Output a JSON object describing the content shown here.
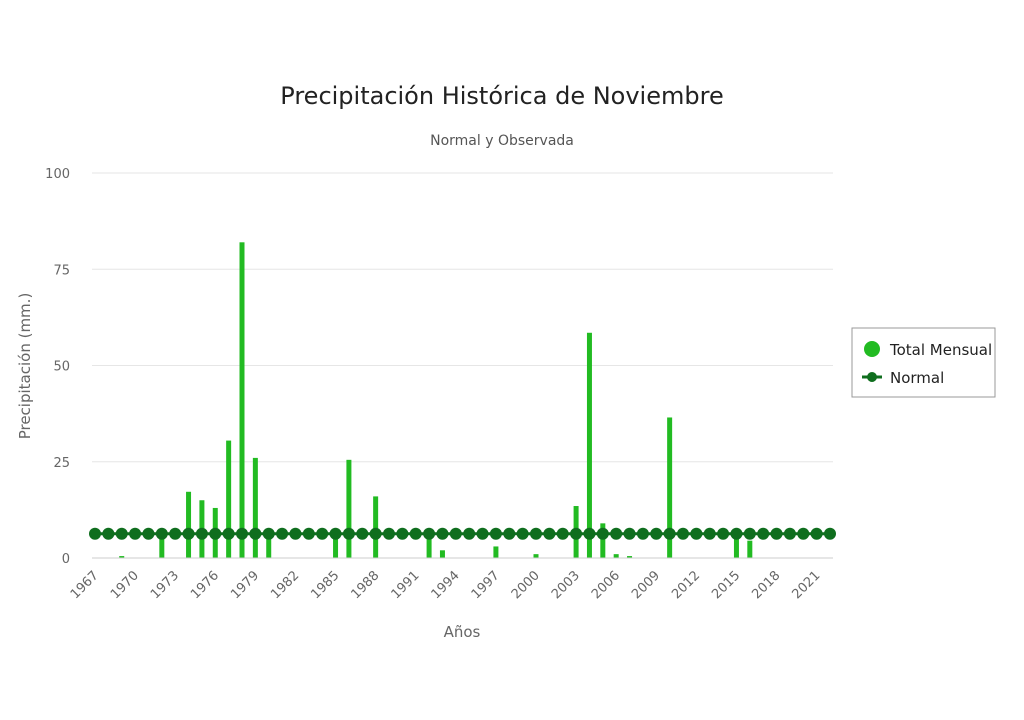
{
  "chart_data": {
    "type": "bar",
    "title": "Precipitación Histórica de Noviembre",
    "subtitle": "Normal y Observada",
    "xlabel": "Años",
    "ylabel": "Precipitación (mm.)",
    "ylim": [
      0,
      100
    ],
    "y_ticks": [
      0,
      25,
      50,
      75,
      100
    ],
    "x_tick_labels": [
      "1967",
      "1970",
      "1973",
      "1976",
      "1979",
      "1982",
      "1985",
      "1988",
      "1991",
      "1994",
      "1997",
      "2000",
      "2003",
      "2006",
      "2009",
      "2012",
      "2015",
      "2018",
      "2021"
    ],
    "categories": [
      1967,
      1968,
      1969,
      1970,
      1971,
      1972,
      1973,
      1974,
      1975,
      1976,
      1977,
      1978,
      1979,
      1980,
      1981,
      1982,
      1983,
      1984,
      1985,
      1986,
      1987,
      1988,
      1989,
      1990,
      1991,
      1992,
      1993,
      1994,
      1995,
      1996,
      1997,
      1998,
      1999,
      2000,
      2001,
      2002,
      2003,
      2004,
      2005,
      2006,
      2007,
      2008,
      2009,
      2010,
      2011,
      2012,
      2013,
      2014,
      2015,
      2016,
      2017,
      2018,
      2019,
      2020,
      2021,
      2022
    ],
    "grid": true,
    "legend_position": "right",
    "series": [
      {
        "name": "Total Mensual",
        "type": "bar",
        "color": "#22bb22",
        "values": [
          0,
          0,
          0.5,
          0,
          0,
          6.5,
          0,
          17.2,
          15,
          13,
          30.5,
          82,
          26,
          6,
          0,
          0,
          0,
          0,
          6,
          25.5,
          0,
          16,
          0,
          0,
          0,
          6.5,
          2,
          0,
          0,
          0,
          3,
          0,
          0,
          1,
          0,
          0,
          13.5,
          58.5,
          9,
          1,
          0.5,
          0,
          0,
          36.5,
          0,
          0,
          0,
          0,
          6,
          4.5,
          0,
          0,
          0,
          0,
          0,
          0
        ]
      },
      {
        "name": "Normal",
        "type": "line",
        "color": "#0f6e1e",
        "values": [
          6.3,
          6.3,
          6.3,
          6.3,
          6.3,
          6.3,
          6.3,
          6.3,
          6.3,
          6.3,
          6.3,
          6.3,
          6.3,
          6.3,
          6.3,
          6.3,
          6.3,
          6.3,
          6.3,
          6.3,
          6.3,
          6.3,
          6.3,
          6.3,
          6.3,
          6.3,
          6.3,
          6.3,
          6.3,
          6.3,
          6.3,
          6.3,
          6.3,
          6.3,
          6.3,
          6.3,
          6.3,
          6.3,
          6.3,
          6.3,
          6.3,
          6.3,
          6.3,
          6.3,
          6.3,
          6.3,
          6.3,
          6.3,
          6.3,
          6.3,
          6.3,
          6.3,
          6.3,
          6.3,
          6.3,
          6.3
        ]
      }
    ]
  }
}
